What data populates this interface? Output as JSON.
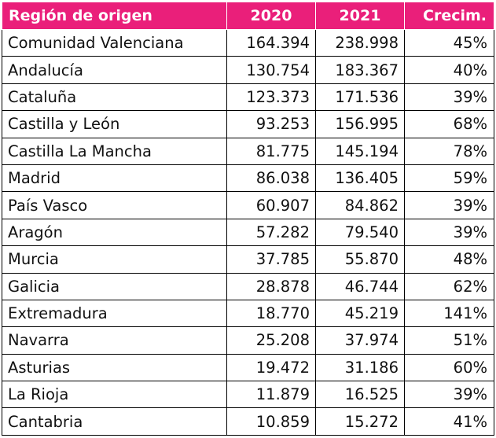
{
  "table": {
    "headers": {
      "region": "Región de origen",
      "y2020": "2020",
      "y2021": "2021",
      "growth": "Crecim."
    },
    "rows": [
      {
        "region": "Comunidad Valenciana",
        "y2020": "164.394",
        "y2021": "238.998",
        "growth": "45%"
      },
      {
        "region": "Andalucía",
        "y2020": "130.754",
        "y2021": "183.367",
        "growth": "40%"
      },
      {
        "region": "Cataluña",
        "y2020": "123.373",
        "y2021": "171.536",
        "growth": "39%"
      },
      {
        "region": "Castilla y León",
        "y2020": "93.253",
        "y2021": "156.995",
        "growth": "68%"
      },
      {
        "region": "Castilla La Mancha",
        "y2020": "81.775",
        "y2021": "145.194",
        "growth": "78%"
      },
      {
        "region": "Madrid",
        "y2020": "86.038",
        "y2021": "136.405",
        "growth": "59%"
      },
      {
        "region": "País Vasco",
        "y2020": "60.907",
        "y2021": "84.862",
        "growth": "39%"
      },
      {
        "region": "Aragón",
        "y2020": "57.282",
        "y2021": "79.540",
        "growth": "39%"
      },
      {
        "region": "Murcia",
        "y2020": "37.785",
        "y2021": "55.870",
        "growth": "48%"
      },
      {
        "region": "Galicia",
        "y2020": "28.878",
        "y2021": "46.744",
        "growth": "62%"
      },
      {
        "region": "Extremadura",
        "y2020": "18.770",
        "y2021": "45.219",
        "growth": "141%"
      },
      {
        "region": "Navarra",
        "y2020": "25.208",
        "y2021": "37.974",
        "growth": "51%"
      },
      {
        "region": "Asturias",
        "y2020": "19.472",
        "y2021": "31.186",
        "growth": "60%"
      },
      {
        "region": "La Rioja",
        "y2020": "11.879",
        "y2021": "16.525",
        "growth": "39%"
      },
      {
        "region": "Cantabria",
        "y2020": "10.859",
        "y2021": "15.272",
        "growth": "41%"
      }
    ]
  },
  "colors": {
    "header_background": "#ea1f7a",
    "header_text": "#ffffff",
    "border": "#000000"
  }
}
